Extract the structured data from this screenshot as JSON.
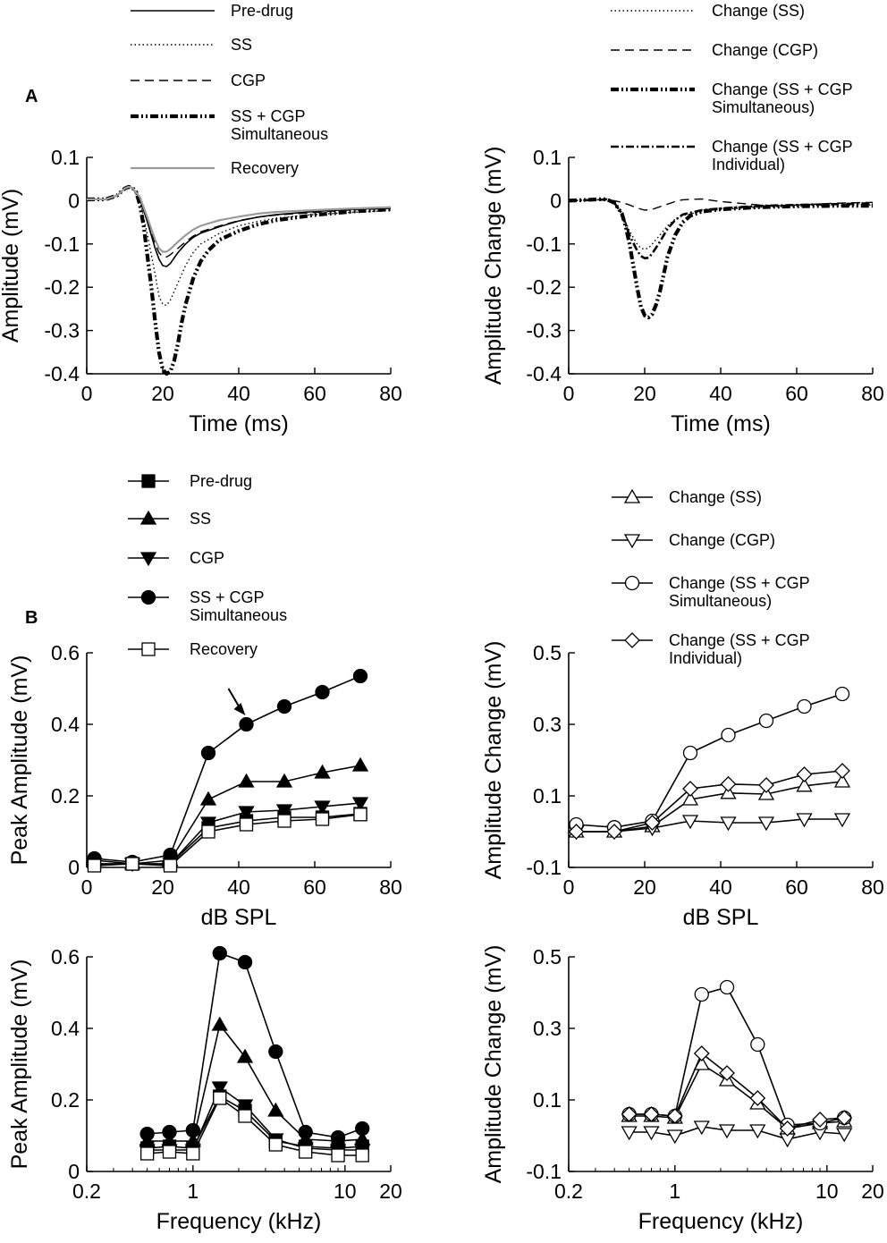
{
  "figure": {
    "panel_labels": [
      "A",
      "B"
    ],
    "colors": {
      "ink": "#000000",
      "recovery": "#9a9a9a",
      "background": "#ffffff"
    }
  },
  "chart_data": [
    {
      "id": "A_left",
      "type": "line",
      "title": "",
      "xlabel": "Time (ms)",
      "ylabel": "Amplitude (mV)",
      "xlim": [
        0,
        80
      ],
      "ylim": [
        -0.4,
        0.1
      ],
      "xticks": [
        0,
        20,
        40,
        60,
        80
      ],
      "yticks": [
        0.1,
        0,
        -0.1,
        -0.2,
        -0.3,
        -0.4
      ],
      "ytick_labels": [
        "0.1",
        "0",
        "-0.1",
        "-0.2",
        "-0.3",
        "-0.4"
      ],
      "legend": "top",
      "series": [
        {
          "name": "Pre-drug",
          "style": "solid",
          "x": [
            0,
            5,
            8,
            10,
            11,
            12,
            14,
            16,
            18,
            19,
            20,
            21,
            22,
            24,
            26,
            28,
            30,
            35,
            40,
            45,
            50,
            60,
            70,
            80
          ],
          "y": [
            0.003,
            0.003,
            0.012,
            0.028,
            0.032,
            0.03,
            0.005,
            -0.05,
            -0.11,
            -0.135,
            -0.15,
            -0.152,
            -0.145,
            -0.12,
            -0.1,
            -0.085,
            -0.075,
            -0.06,
            -0.047,
            -0.038,
            -0.032,
            -0.025,
            -0.02,
            -0.017
          ]
        },
        {
          "name": "SS",
          "style": "dotted",
          "x": [
            0,
            5,
            8,
            10,
            11,
            12,
            14,
            16,
            18,
            19,
            20,
            21,
            22,
            24,
            26,
            28,
            30,
            35,
            40,
            45,
            50,
            60,
            70,
            80
          ],
          "y": [
            0.003,
            0.003,
            0.012,
            0.028,
            0.032,
            0.03,
            0,
            -0.08,
            -0.17,
            -0.22,
            -0.24,
            -0.242,
            -0.23,
            -0.19,
            -0.15,
            -0.12,
            -0.1,
            -0.075,
            -0.058,
            -0.048,
            -0.04,
            -0.032,
            -0.027,
            -0.023
          ]
        },
        {
          "name": "CGP",
          "style": "dashed",
          "x": [
            0,
            5,
            8,
            10,
            11,
            12,
            14,
            16,
            18,
            19,
            20,
            21,
            22,
            24,
            26,
            28,
            30,
            35,
            40,
            45,
            50,
            60,
            70,
            80
          ],
          "y": [
            0.003,
            0.003,
            0.012,
            0.028,
            0.032,
            0.03,
            0.005,
            -0.05,
            -0.1,
            -0.12,
            -0.13,
            -0.13,
            -0.125,
            -0.11,
            -0.095,
            -0.082,
            -0.072,
            -0.058,
            -0.046,
            -0.038,
            -0.033,
            -0.027,
            -0.021,
            -0.018
          ]
        },
        {
          "name": "SS + CGP\nSimultaneous",
          "style": "dashdot-bold",
          "x": [
            0,
            5,
            8,
            10,
            11,
            12,
            13,
            14,
            15,
            16,
            17,
            18,
            19,
            20,
            21,
            22,
            23,
            24,
            25,
            26,
            28,
            30,
            32,
            35,
            40,
            45,
            50,
            60,
            70,
            80
          ],
          "y": [
            0.003,
            0.003,
            0.012,
            0.028,
            0.032,
            0.03,
            0.02,
            -0.01,
            -0.06,
            -0.13,
            -0.2,
            -0.28,
            -0.35,
            -0.39,
            -0.4,
            -0.395,
            -0.37,
            -0.33,
            -0.28,
            -0.24,
            -0.18,
            -0.14,
            -0.115,
            -0.09,
            -0.07,
            -0.055,
            -0.045,
            -0.033,
            -0.025,
            -0.02
          ]
        },
        {
          "name": "Recovery",
          "style": "solid-gray",
          "x": [
            0,
            5,
            8,
            10,
            11,
            12,
            14,
            16,
            18,
            19,
            20,
            21,
            22,
            24,
            26,
            28,
            30,
            35,
            40,
            45,
            50,
            60,
            70,
            80
          ],
          "y": [
            0.003,
            0.003,
            0.012,
            0.028,
            0.032,
            0.03,
            0.008,
            -0.04,
            -0.09,
            -0.11,
            -0.118,
            -0.118,
            -0.112,
            -0.095,
            -0.08,
            -0.067,
            -0.058,
            -0.045,
            -0.037,
            -0.03,
            -0.026,
            -0.022,
            -0.018,
            -0.015
          ]
        }
      ]
    },
    {
      "id": "A_right",
      "type": "line",
      "title": "",
      "xlabel": "Time (ms)",
      "ylabel": "Amplitude Change (mV)",
      "xlim": [
        0,
        80
      ],
      "ylim": [
        -0.4,
        0.1
      ],
      "xticks": [
        0,
        20,
        40,
        60,
        80
      ],
      "yticks": [
        0.1,
        0,
        -0.1,
        -0.2,
        -0.3,
        -0.4
      ],
      "ytick_labels": [
        "0.1",
        "0",
        "-0.1",
        "-0.2",
        "-0.3",
        "-0.4"
      ],
      "legend": "top",
      "series": [
        {
          "name": "Change (SS)",
          "style": "dotted",
          "x": [
            0,
            8,
            10,
            12,
            14,
            16,
            18,
            19,
            20,
            21,
            22,
            24,
            26,
            28,
            30,
            35,
            40,
            50,
            60,
            70,
            80
          ],
          "y": [
            0,
            0.002,
            0.003,
            -0.005,
            -0.03,
            -0.07,
            -0.1,
            -0.11,
            -0.112,
            -0.11,
            -0.1,
            -0.08,
            -0.058,
            -0.043,
            -0.034,
            -0.025,
            -0.02,
            -0.015,
            -0.013,
            -0.011,
            -0.01
          ]
        },
        {
          "name": "Change (CGP)",
          "style": "dashed",
          "x": [
            0,
            8,
            10,
            12,
            14,
            16,
            18,
            20,
            22,
            24,
            26,
            28,
            30,
            35,
            40,
            45,
            50,
            55,
            60,
            70,
            80
          ],
          "y": [
            0,
            0.002,
            0.002,
            0,
            -0.004,
            -0.01,
            -0.017,
            -0.022,
            -0.02,
            -0.014,
            -0.008,
            -0.002,
            0.002,
            0.004,
            -0.002,
            -0.006,
            -0.01,
            -0.012,
            -0.01,
            -0.006,
            -0.004
          ]
        },
        {
          "name": "Change (SS + CGP\nSimultaneous)",
          "style": "dashdot-bold",
          "x": [
            0,
            8,
            10,
            12,
            14,
            15,
            16,
            17,
            18,
            19,
            20,
            21,
            22,
            23,
            24,
            25,
            26,
            28,
            30,
            32,
            35,
            40,
            50,
            60,
            70,
            80
          ],
          "y": [
            0,
            0.003,
            0.003,
            -0.005,
            -0.03,
            -0.06,
            -0.1,
            -0.15,
            -0.2,
            -0.245,
            -0.265,
            -0.27,
            -0.262,
            -0.24,
            -0.21,
            -0.17,
            -0.13,
            -0.08,
            -0.05,
            -0.035,
            -0.025,
            -0.02,
            -0.015,
            -0.013,
            -0.012,
            -0.012
          ]
        },
        {
          "name": "Change (SS + CGP\nIndividual)",
          "style": "dashdot",
          "x": [
            0,
            8,
            10,
            12,
            14,
            16,
            18,
            19,
            20,
            21,
            22,
            24,
            26,
            28,
            30,
            35,
            40,
            50,
            60,
            70,
            80
          ],
          "y": [
            0,
            0.002,
            0.003,
            -0.005,
            -0.03,
            -0.08,
            -0.115,
            -0.128,
            -0.133,
            -0.132,
            -0.122,
            -0.095,
            -0.065,
            -0.045,
            -0.032,
            -0.022,
            -0.018,
            -0.012,
            -0.01,
            -0.008,
            -0.006
          ]
        }
      ]
    },
    {
      "id": "B_left_top",
      "type": "line",
      "title": "",
      "xlabel": "dB SPL",
      "ylabel": "Peak Amplitude (mV)",
      "xlim": [
        0,
        80
      ],
      "ylim": [
        0,
        0.6
      ],
      "xticks": [
        0,
        20,
        40,
        60,
        80
      ],
      "yticks": [
        0,
        0.2,
        0.4,
        0.6
      ],
      "ytick_labels": [
        "0",
        "0.2",
        "0.4",
        "0.6"
      ],
      "legend": "top",
      "annotation": {
        "type": "arrow",
        "target": "SS + CGP Simultaneous at 42 dB SPL"
      },
      "x": [
        2,
        12,
        22,
        32,
        42,
        52,
        62,
        72
      ],
      "series": [
        {
          "name": "Pre-drug",
          "marker": "square-filled",
          "values": [
            0.01,
            0.01,
            0.01,
            0.11,
            0.13,
            0.14,
            0.14,
            0.15
          ]
        },
        {
          "name": "SS",
          "marker": "triangle-up-filled",
          "values": [
            0.02,
            0.01,
            0.02,
            0.19,
            0.24,
            0.24,
            0.265,
            0.285
          ]
        },
        {
          "name": "CGP",
          "marker": "triangle-down-filled",
          "values": [
            0.01,
            0.01,
            0.01,
            0.125,
            0.155,
            0.16,
            0.17,
            0.18
          ]
        },
        {
          "name": "SS + CGP\nSimultaneous",
          "marker": "circle-filled",
          "values": [
            0.025,
            0.015,
            0.035,
            0.32,
            0.4,
            0.45,
            0.49,
            0.535
          ]
        },
        {
          "name": "Recovery",
          "marker": "square-open",
          "values": [
            0.005,
            0.01,
            0.005,
            0.1,
            0.12,
            0.13,
            0.135,
            0.148
          ]
        }
      ]
    },
    {
      "id": "B_right_top",
      "type": "line",
      "title": "",
      "xlabel": "dB SPL",
      "ylabel": "Amplitude Change (mV)",
      "xlim": [
        0,
        80
      ],
      "ylim": [
        -0.1,
        0.5
      ],
      "xticks": [
        0,
        20,
        40,
        60,
        80
      ],
      "yticks": [
        -0.1,
        0.1,
        0.3,
        0.5
      ],
      "ytick_labels": [
        "-0.1",
        "0.1",
        "0.3",
        "0.5"
      ],
      "legend": "top",
      "x": [
        2,
        12,
        22,
        32,
        42,
        52,
        62,
        72
      ],
      "series": [
        {
          "name": "Change (SS)",
          "marker": "triangle-up-open",
          "values": [
            0.0,
            0.0,
            0.015,
            0.09,
            0.108,
            0.105,
            0.128,
            0.14
          ]
        },
        {
          "name": "Change (CGP)",
          "marker": "triangle-down-open",
          "values": [
            0.0,
            0.0,
            0.01,
            0.03,
            0.025,
            0.025,
            0.035,
            0.035
          ]
        },
        {
          "name": "Change (SS + CGP\nSimultaneous)",
          "marker": "circle-open",
          "values": [
            0.02,
            0.012,
            0.03,
            0.22,
            0.27,
            0.31,
            0.35,
            0.385
          ]
        },
        {
          "name": "Change (SS + CGP\nIndividual)",
          "marker": "diamond-open",
          "values": [
            0.0,
            0.0,
            0.025,
            0.12,
            0.133,
            0.13,
            0.16,
            0.17
          ]
        }
      ]
    },
    {
      "id": "B_left_bottom",
      "type": "line",
      "title": "",
      "xlabel": "Frequency (kHz)",
      "ylabel": "Peak Amplitude (mV)",
      "xscale": "log",
      "xlim": [
        0.2,
        20
      ],
      "ylim": [
        0,
        0.6
      ],
      "xticks": [
        0.2,
        1,
        10,
        20
      ],
      "xtick_labels": [
        "0.2",
        "1",
        "10",
        "20"
      ],
      "yticks": [
        0,
        0.2,
        0.4,
        0.6
      ],
      "ytick_labels": [
        "0",
        "0.2",
        "0.4",
        "0.6"
      ],
      "x": [
        0.5,
        0.7,
        1.0,
        1.5,
        2.2,
        3.5,
        5.5,
        9.0,
        13.0
      ],
      "series": [
        {
          "name": "Pre-drug",
          "marker": "square-filled",
          "values": [
            0.065,
            0.07,
            0.065,
            0.21,
            0.17,
            0.085,
            0.07,
            0.065,
            0.07
          ]
        },
        {
          "name": "SS",
          "marker": "triangle-up-filled",
          "values": [
            0.085,
            0.085,
            0.085,
            0.41,
            0.32,
            0.17,
            0.09,
            0.085,
            0.09
          ]
        },
        {
          "name": "CGP",
          "marker": "triangle-down-filled",
          "values": [
            0.06,
            0.06,
            0.06,
            0.235,
            0.185,
            0.09,
            0.065,
            0.06,
            0.06
          ]
        },
        {
          "name": "SS + CGP\nSimultaneous",
          "marker": "circle-filled",
          "values": [
            0.105,
            0.11,
            0.115,
            0.61,
            0.585,
            0.335,
            0.11,
            0.095,
            0.12
          ]
        },
        {
          "name": "Recovery",
          "marker": "square-open",
          "values": [
            0.05,
            0.055,
            0.05,
            0.205,
            0.155,
            0.075,
            0.055,
            0.045,
            0.045
          ]
        }
      ]
    },
    {
      "id": "B_right_bottom",
      "type": "line",
      "title": "",
      "xlabel": "Frequency (kHz)",
      "ylabel": "Amplitude Change (mV)",
      "xscale": "log",
      "xlim": [
        0.2,
        20
      ],
      "ylim": [
        -0.1,
        0.5
      ],
      "xticks": [
        0.2,
        1,
        10,
        20
      ],
      "xtick_labels": [
        "0.2",
        "1",
        "10",
        "20"
      ],
      "yticks": [
        -0.1,
        0.1,
        0.3,
        0.5
      ],
      "ytick_labels": [
        "-0.1",
        "0.1",
        "0.3",
        "0.5"
      ],
      "x": [
        0.5,
        0.7,
        1.0,
        1.5,
        2.2,
        3.5,
        5.5,
        9.0,
        13.0
      ],
      "series": [
        {
          "name": "Change (SS)",
          "marker": "triangle-up-open",
          "values": [
            0.055,
            0.055,
            0.05,
            0.2,
            0.155,
            0.09,
            0.02,
            0.035,
            0.04
          ]
        },
        {
          "name": "Change (CGP)",
          "marker": "triangle-down-open",
          "values": [
            0.01,
            0.01,
            0.0,
            0.025,
            0.015,
            0.015,
            -0.01,
            0.01,
            0.005
          ]
        },
        {
          "name": "Change (SS + CGP\nSimultaneous)",
          "marker": "circle-open",
          "values": [
            0.06,
            0.06,
            0.055,
            0.395,
            0.415,
            0.255,
            0.03,
            0.035,
            0.05
          ]
        },
        {
          "name": "Change (SS + CGP\nIndividual)",
          "marker": "diamond-open",
          "values": [
            0.06,
            0.06,
            0.055,
            0.23,
            0.175,
            0.105,
            0.02,
            0.045,
            0.05
          ]
        }
      ]
    }
  ]
}
